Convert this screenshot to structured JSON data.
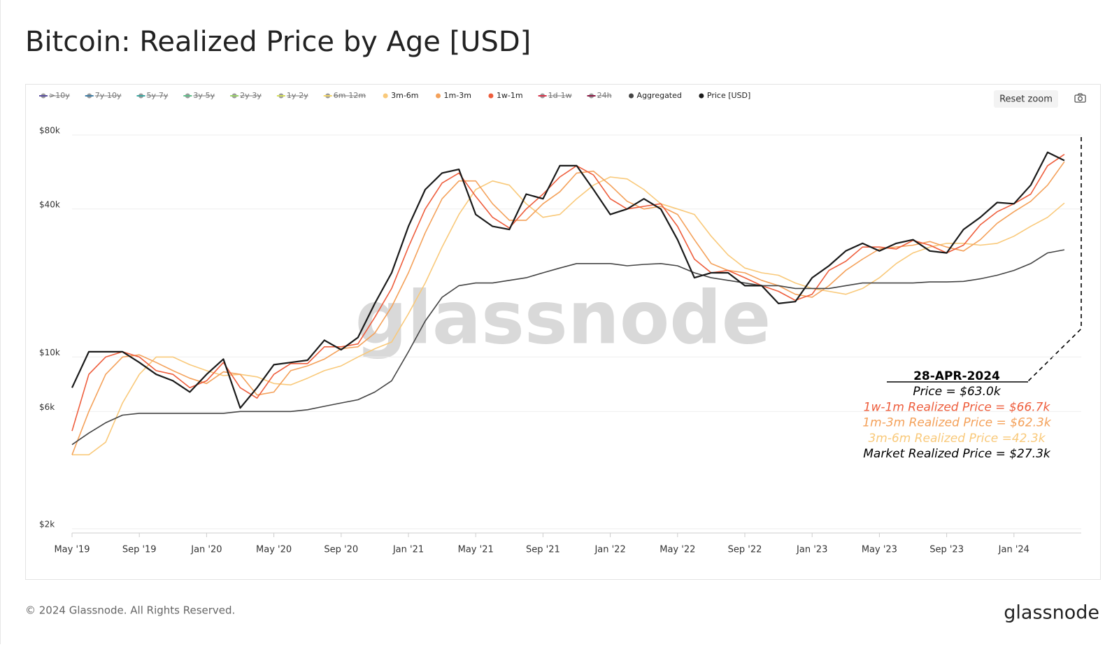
{
  "chart_data": {
    "type": "line",
    "title": "Bitcoin: Realized Price by Age [USD]",
    "reset_zoom": "Reset zoom",
    "watermark": "glassnode",
    "footer": "© 2024 Glassnode. All Rights Reserved.",
    "logo": "glassnode",
    "log_scale": true,
    "x": [
      "2019-05",
      "2019-06",
      "2019-07",
      "2019-08",
      "2019-09",
      "2019-10",
      "2019-11",
      "2019-12",
      "2020-01",
      "2020-02",
      "2020-03",
      "2020-04",
      "2020-05",
      "2020-06",
      "2020-07",
      "2020-08",
      "2020-09",
      "2020-10",
      "2020-11",
      "2020-12",
      "2021-01",
      "2021-02",
      "2021-03",
      "2021-04",
      "2021-05",
      "2021-06",
      "2021-07",
      "2021-08",
      "2021-09",
      "2021-10",
      "2021-11",
      "2021-12",
      "2022-01",
      "2022-02",
      "2022-03",
      "2022-04",
      "2022-05",
      "2022-06",
      "2022-07",
      "2022-08",
      "2022-09",
      "2022-10",
      "2022-11",
      "2022-12",
      "2023-01",
      "2023-02",
      "2023-03",
      "2023-04",
      "2023-05",
      "2023-06",
      "2023-07",
      "2023-08",
      "2023-09",
      "2023-10",
      "2023-11",
      "2023-12",
      "2024-01",
      "2024-02",
      "2024-03",
      "2024-04"
    ],
    "xlim": [
      "2019-05",
      "2024-05"
    ],
    "xticks": [
      {
        "value": "2019-05",
        "label": "May '19"
      },
      {
        "value": "2019-09",
        "label": "Sep '19"
      },
      {
        "value": "2020-01",
        "label": "Jan '20"
      },
      {
        "value": "2020-05",
        "label": "May '20"
      },
      {
        "value": "2020-09",
        "label": "Sep '20"
      },
      {
        "value": "2021-01",
        "label": "Jan '21"
      },
      {
        "value": "2021-05",
        "label": "May '21"
      },
      {
        "value": "2021-09",
        "label": "Sep '21"
      },
      {
        "value": "2022-01",
        "label": "Jan '22"
      },
      {
        "value": "2022-05",
        "label": "May '22"
      },
      {
        "value": "2022-09",
        "label": "Sep '22"
      },
      {
        "value": "2023-01",
        "label": "Jan '23"
      },
      {
        "value": "2023-05",
        "label": "May '23"
      },
      {
        "value": "2023-09",
        "label": "Sep '23"
      },
      {
        "value": "2024-01",
        "label": "Jan '24"
      }
    ],
    "ylim": [
      2000,
      80000
    ],
    "yticks": [
      {
        "value": 2000,
        "label": "$2k"
      },
      {
        "value": 6000,
        "label": "$6k"
      },
      {
        "value": 10000,
        "label": "$10k"
      },
      {
        "value": 40000,
        "label": "$40k"
      },
      {
        "value": 80000,
        "label": "$80k"
      }
    ],
    "series": [
      {
        "name": ">10y",
        "color": "#5b4fa0",
        "hidden": true
      },
      {
        "name": "7y-10y",
        "color": "#3f7ea6",
        "hidden": true
      },
      {
        "name": "5y-7y",
        "color": "#3aa6a0",
        "hidden": true
      },
      {
        "name": "3y-5y",
        "color": "#5fbf8a",
        "hidden": true
      },
      {
        "name": "2y-3y",
        "color": "#9bd36a",
        "hidden": true
      },
      {
        "name": "1y-2y",
        "color": "#d4de5c",
        "hidden": true
      },
      {
        "name": "6m-12m",
        "color": "#f2d76a",
        "hidden": true
      },
      {
        "name": "3m-6m",
        "color": "#f9c97a",
        "values": [
          4000,
          4000,
          4500,
          6500,
          8500,
          10000,
          10000,
          9300,
          8800,
          8400,
          8500,
          8300,
          7800,
          7700,
          8200,
          8800,
          9200,
          10000,
          10800,
          11500,
          15000,
          20000,
          28000,
          38000,
          48000,
          52000,
          50000,
          42000,
          37000,
          38000,
          44000,
          50000,
          54000,
          53000,
          48000,
          42000,
          40000,
          38000,
          31000,
          26000,
          23000,
          22000,
          21500,
          20000,
          19000,
          18500,
          18000,
          19000,
          21000,
          24000,
          26500,
          28000,
          29000,
          29000,
          28500,
          29000,
          31000,
          34000,
          37000,
          42300
        ]
      },
      {
        "name": "1m-3m",
        "color": "#f4a15a",
        "values": [
          4000,
          6000,
          8500,
          10000,
          10200,
          9500,
          8800,
          8200,
          7800,
          8700,
          8500,
          7000,
          7200,
          8800,
          9200,
          9800,
          10800,
          11000,
          12500,
          16000,
          22000,
          32000,
          44000,
          52000,
          52000,
          42000,
          36000,
          36000,
          42000,
          47000,
          56000,
          57000,
          50000,
          43000,
          40000,
          41000,
          38000,
          30000,
          24000,
          22500,
          22000,
          20500,
          19500,
          18000,
          17500,
          19500,
          22500,
          25000,
          27500,
          28000,
          28500,
          29500,
          28000,
          27000,
          30000,
          35000,
          39000,
          43000,
          50000,
          62300
        ]
      },
      {
        "name": "1w-1m",
        "color": "#ee5d3c",
        "values": [
          5000,
          8500,
          10000,
          10500,
          10000,
          8800,
          8500,
          7500,
          8000,
          9500,
          7500,
          6800,
          8500,
          9400,
          9400,
          11000,
          11000,
          11300,
          14500,
          19000,
          28000,
          40000,
          51000,
          56000,
          45000,
          37000,
          33500,
          40000,
          46000,
          54000,
          60000,
          55000,
          44000,
          40000,
          41000,
          42000,
          34000,
          25000,
          22000,
          22500,
          21000,
          19500,
          18500,
          17000,
          18000,
          22500,
          24500,
          28000,
          28000,
          27500,
          29800,
          28500,
          26500,
          28500,
          34500,
          39000,
          42000,
          46000,
          60000,
          66700
        ]
      },
      {
        "name": "1d-1w",
        "color": "#d7334b",
        "hidden": true
      },
      {
        "name": "24h",
        "color": "#8b1a44",
        "hidden": true
      },
      {
        "name": "Aggregated",
        "color": "#444444",
        "values": [
          4400,
          4900,
          5400,
          5800,
          5900,
          5900,
          5900,
          5900,
          5900,
          5900,
          6000,
          6000,
          6000,
          6000,
          6100,
          6300,
          6500,
          6700,
          7200,
          8000,
          10500,
          14000,
          17500,
          19500,
          20000,
          20000,
          20500,
          21000,
          22000,
          23000,
          24000,
          24000,
          24000,
          23500,
          23800,
          24000,
          23500,
          22000,
          21000,
          20500,
          20000,
          19500,
          19500,
          19000,
          19000,
          19000,
          19500,
          20000,
          20000,
          20000,
          20000,
          20200,
          20200,
          20300,
          20800,
          21500,
          22500,
          24000,
          26500,
          27300
        ]
      },
      {
        "name": "Price [USD]",
        "color": "#1a1a1a",
        "values": [
          7500,
          10500,
          10500,
          10500,
          9500,
          8500,
          8000,
          7200,
          8500,
          9800,
          6200,
          7500,
          9300,
          9500,
          9700,
          11700,
          10700,
          12000,
          16500,
          22000,
          34000,
          48000,
          56000,
          58000,
          38000,
          34000,
          33000,
          46000,
          44000,
          60000,
          60000,
          48000,
          38000,
          40000,
          44000,
          40000,
          30000,
          21000,
          22000,
          22000,
          19500,
          19500,
          16500,
          16800,
          21000,
          23500,
          27000,
          29000,
          27000,
          29000,
          30000,
          27000,
          26500,
          33000,
          37000,
          42500,
          42000,
          50000,
          68000,
          63000
        ]
      }
    ],
    "annotation": {
      "date": "28-APR-2024",
      "lines": [
        {
          "text": "Price = $63.0k",
          "color": "#000000"
        },
        {
          "text": "1w-1m Realized Price = $66.7k",
          "color": "#ee5d3c"
        },
        {
          "text": "1m-3m Realized Price = $62.3k",
          "color": "#f4a15a"
        },
        {
          "text": "3m-6m Realized Price =42.3k",
          "color": "#f9c97a"
        },
        {
          "text": "Market Realized Price = $27.3k",
          "color": "#000000"
        }
      ]
    }
  }
}
